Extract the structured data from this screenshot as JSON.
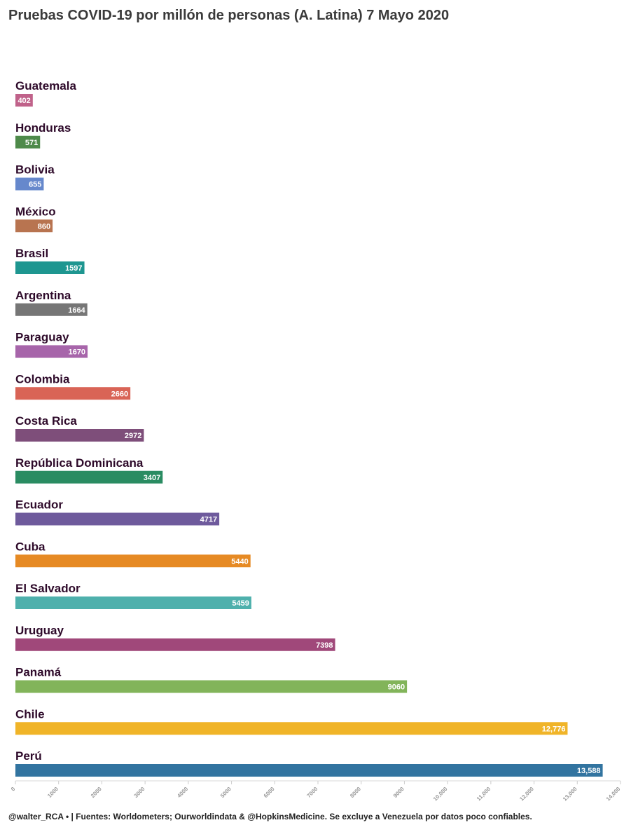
{
  "title": "Pruebas COVID-19 por millón de personas (A. Latina) 7 Mayo 2020",
  "footer": "@walter_RCA • | Fuentes: Worldometers; Ourworldindata & @HopkinsMedicine. Se excluye a Venezuela por datos poco confiables.",
  "chart_data": {
    "type": "bar",
    "orientation": "horizontal",
    "title": "Pruebas COVID-19 por millón de personas (A. Latina) 7 Mayo 2020",
    "xlim": [
      0,
      14000
    ],
    "x_ticks": [
      "0",
      "1000",
      "2000",
      "3000",
      "4000",
      "5000",
      "6000",
      "7000",
      "8000",
      "9000",
      "10,000",
      "11,000",
      "12,000",
      "13,000",
      "14,000"
    ],
    "grid": false,
    "bars": [
      {
        "category": "Guatemala",
        "value": 402,
        "label": "402",
        "color": "#c0628a"
      },
      {
        "category": "Honduras",
        "value": 571,
        "label": "571",
        "color": "#4e8a4a"
      },
      {
        "category": "Bolivia",
        "value": 655,
        "label": "655",
        "color": "#6688cc"
      },
      {
        "category": "México",
        "value": 860,
        "label": "860",
        "color": "#b87450"
      },
      {
        "category": "Brasil",
        "value": 1597,
        "label": "1597",
        "color": "#1e9690"
      },
      {
        "category": "Argentina",
        "value": 1664,
        "label": "1664",
        "color": "#767676"
      },
      {
        "category": "Paraguay",
        "value": 1670,
        "label": "1670",
        "color": "#a765aa"
      },
      {
        "category": "Colombia",
        "value": 2660,
        "label": "2660",
        "color": "#d96456"
      },
      {
        "category": "Costa Rica",
        "value": 2972,
        "label": "2972",
        "color": "#7e4e7a"
      },
      {
        "category": "República Dominicana",
        "value": 3407,
        "label": "3407",
        "color": "#2a8c62"
      },
      {
        "category": "Ecuador",
        "value": 4717,
        "label": "4717",
        "color": "#6e5a9c"
      },
      {
        "category": "Cuba",
        "value": 5440,
        "label": "5440",
        "color": "#e68a24"
      },
      {
        "category": "El Salvador",
        "value": 5459,
        "label": "5459",
        "color": "#4eb0ac"
      },
      {
        "category": "Uruguay",
        "value": 7398,
        "label": "7398",
        "color": "#a0487a"
      },
      {
        "category": "Panamá",
        "value": 9060,
        "label": "9060",
        "color": "#82b45a"
      },
      {
        "category": "Chile",
        "value": 12776,
        "label": "12,776",
        "color": "#f0b428"
      },
      {
        "category": "Perú",
        "value": 13588,
        "label": "13,588",
        "color": "#3274a0"
      }
    ]
  }
}
